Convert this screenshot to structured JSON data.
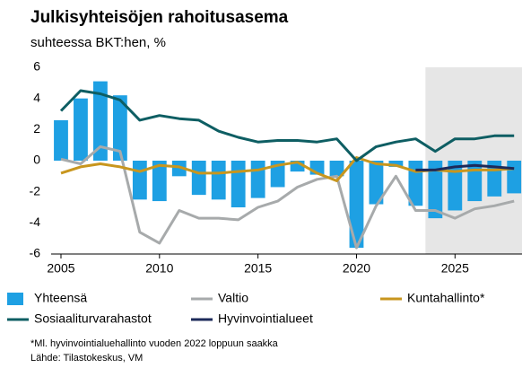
{
  "chart_data": {
    "type": "bar_line",
    "title": "Julkisyhteisöjen rahoitusasema",
    "subtitle": "suhteessa BKT:hen, %",
    "x": [
      2005,
      2006,
      2007,
      2008,
      2009,
      2010,
      2011,
      2012,
      2013,
      2014,
      2015,
      2016,
      2017,
      2018,
      2019,
      2020,
      2021,
      2022,
      2023,
      2024,
      2025,
      2026,
      2027,
      2028
    ],
    "xlim": [
      2004.5,
      2028.4
    ],
    "xticks": [
      2005,
      2010,
      2015,
      2020,
      2025
    ],
    "ylim": [
      -6,
      6
    ],
    "yticks": [
      6,
      4,
      2,
      0,
      -2,
      -4,
      -6
    ],
    "shaded_from": 2023.5,
    "shade_color": "#e6e6e6",
    "series": [
      {
        "name": "Yhteensä",
        "kind": "bar",
        "color": "#1ea0e3",
        "values": [
          2.6,
          4.0,
          5.1,
          4.2,
          -2.5,
          -2.6,
          -1.0,
          -2.2,
          -2.5,
          -3.0,
          -2.4,
          -1.7,
          -0.7,
          -0.9,
          -1.0,
          -5.6,
          -2.8,
          -0.4,
          -2.9,
          -3.7,
          -3.2,
          -2.6,
          -2.3,
          -2.1
        ]
      },
      {
        "name": "Valtio",
        "kind": "line",
        "color": "#a7aaab",
        "values": [
          0.1,
          -0.2,
          0.9,
          0.6,
          -4.6,
          -5.3,
          -3.2,
          -3.7,
          -3.7,
          -3.8,
          -3.0,
          -2.6,
          -1.7,
          -1.2,
          -1.0,
          -5.6,
          -2.9,
          -1.0,
          -3.2,
          -3.2,
          -3.7,
          -3.1,
          -2.9,
          -2.6
        ]
      },
      {
        "name": "Kuntahallinto*",
        "kind": "line",
        "color": "#c8961e",
        "values": [
          -0.8,
          -0.4,
          -0.2,
          -0.4,
          -0.7,
          -0.3,
          -0.4,
          -0.8,
          -0.8,
          -0.7,
          -0.6,
          -0.3,
          -0.1,
          -0.8,
          -1.3,
          0.2,
          -0.2,
          -0.3,
          -0.7,
          -0.6,
          -0.7,
          -0.6,
          -0.6,
          -0.5
        ]
      },
      {
        "name": "Sosiaaliturvarahastot",
        "kind": "line",
        "color": "#0e5e63",
        "values": [
          3.2,
          4.5,
          4.3,
          3.9,
          2.6,
          2.9,
          2.7,
          2.6,
          1.9,
          1.5,
          1.2,
          1.3,
          1.3,
          1.2,
          1.4,
          0.0,
          0.9,
          1.2,
          1.4,
          0.6,
          1.4,
          1.4,
          1.6,
          1.6
        ]
      },
      {
        "name": "Hyvinvointialueet",
        "kind": "line",
        "color": "#1c2a5a",
        "values": [
          null,
          null,
          null,
          null,
          null,
          null,
          null,
          null,
          null,
          null,
          null,
          null,
          null,
          null,
          null,
          null,
          null,
          null,
          -0.6,
          -0.6,
          -0.4,
          -0.3,
          -0.4,
          -0.5
        ]
      }
    ],
    "footnotes": [
      "*Ml. hyvinvointialuehallinto vuoden 2022 loppuun saakka",
      "Lähde: Tilastokeskus, VM"
    ]
  }
}
